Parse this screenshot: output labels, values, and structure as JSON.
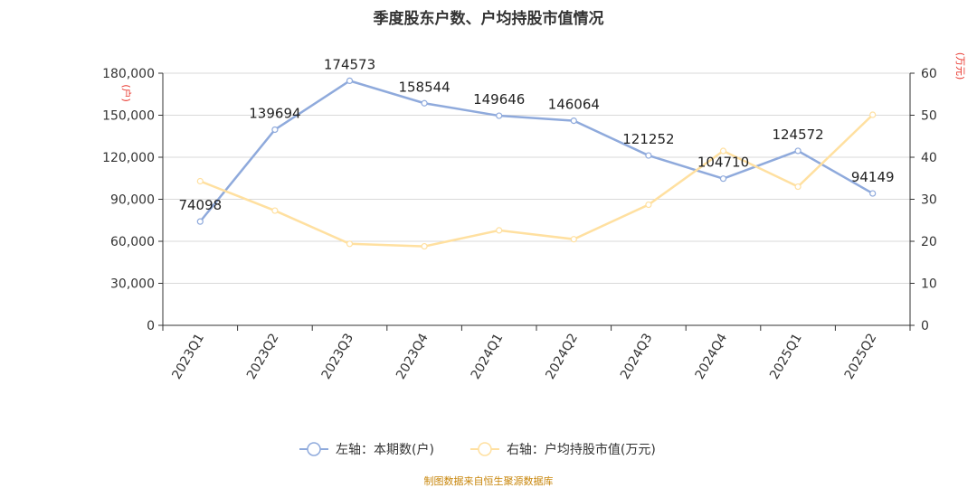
{
  "title": "季度股东户数、户均持股市值情况",
  "footer": "制图数据来自恒生聚源数据库",
  "chart_data": {
    "type": "line",
    "categories": [
      "2023Q1",
      "2023Q2",
      "2023Q3",
      "2023Q4",
      "2024Q1",
      "2024Q2",
      "2024Q3",
      "2024Q4",
      "2025Q1",
      "2025Q2"
    ],
    "left_axis": {
      "unit_label": "(户)",
      "ylim": [
        0,
        180000
      ],
      "ticks": [
        0,
        30000,
        60000,
        90000,
        120000,
        150000,
        180000
      ],
      "tick_labels": [
        "0",
        "30,000",
        "60,000",
        "90,000",
        "120,000",
        "150,000",
        "180,000"
      ]
    },
    "right_axis": {
      "unit_label": "(万元)",
      "ylim": [
        0,
        60
      ],
      "ticks": [
        0,
        10,
        20,
        30,
        40,
        50,
        60
      ],
      "tick_labels": [
        "0",
        "10",
        "20",
        "30",
        "40",
        "50",
        "60"
      ]
    },
    "series": [
      {
        "name": "左轴：本期数(户)",
        "axis": "left",
        "color": "#8faadc",
        "values": [
          74098,
          139694,
          174573,
          158544,
          149646,
          146064,
          121252,
          104710,
          124572,
          94149
        ],
        "data_labels": [
          "74098",
          "139694",
          "174573",
          "158544",
          "149646",
          "146064",
          "121252",
          "104710",
          "124572",
          "94149"
        ]
      },
      {
        "name": "右轴：户均持股市值(万元)",
        "axis": "right",
        "color": "#ffe0a0",
        "values": [
          34.3,
          27.3,
          19.4,
          18.8,
          22.6,
          20.5,
          28.7,
          41.5,
          33.0,
          50.1
        ]
      }
    ],
    "grid": true,
    "legend_position": "bottom"
  }
}
